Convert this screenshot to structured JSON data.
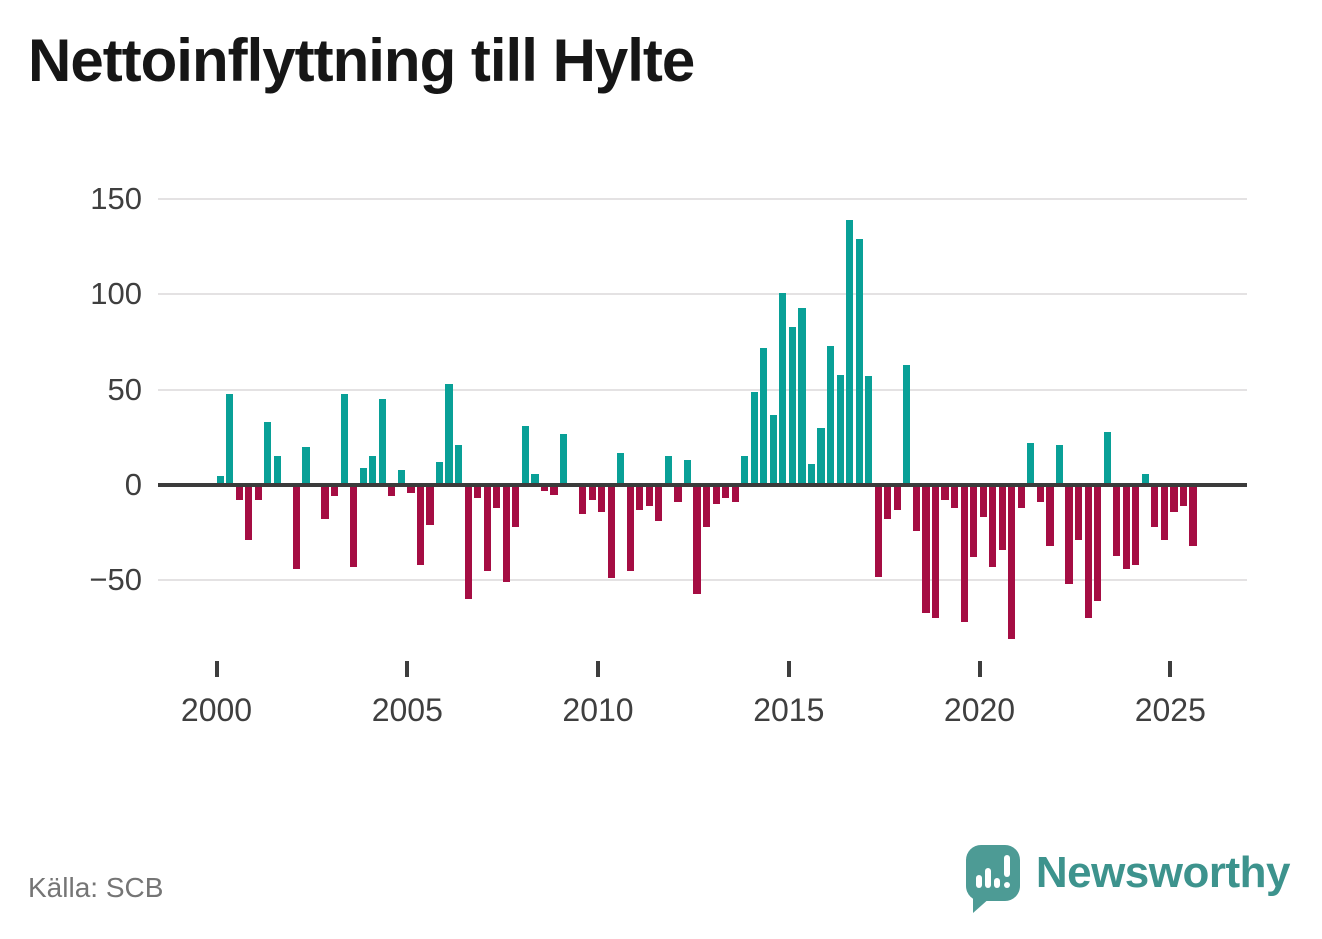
{
  "title": "Nettoinflyttning till Hylte",
  "source": "Källa: SCB",
  "brand": {
    "name": "Newsworthy"
  },
  "colors": {
    "positive_bar": "#09a097",
    "negative_bar": "#a50d43",
    "zero_line": "#3b3b3b",
    "gridline": "#e4e2e3",
    "axis_text": "#3f3f3f",
    "title_text": "#161616",
    "source_text": "#757575",
    "brand_teal": "#3d938d",
    "logo_background": "#4d9b95"
  },
  "chart_data": {
    "type": "bar",
    "title": "Nettoinflyttning till Hylte",
    "xlabel": "",
    "ylabel": "",
    "legend": "none",
    "grid": "horizontal",
    "frequency": "quarterly",
    "period_start": "2000 Q1",
    "period_end": "2025 Q3",
    "start_year": 2000,
    "ylim": [
      -90,
      160
    ],
    "y_ticks": [
      150,
      100,
      50,
      0,
      -50
    ],
    "x_label_ticks": [
      "2000",
      "2005",
      "2010",
      "2015",
      "2020",
      "2025"
    ],
    "values": [
      5,
      48,
      -8,
      -29,
      -8,
      33,
      15,
      0,
      -44,
      20,
      0,
      -18,
      -6,
      48,
      -43,
      9,
      15,
      45,
      -6,
      8,
      -4,
      -42,
      -21,
      12,
      53,
      21,
      -60,
      -7,
      -45,
      -12,
      -51,
      -22,
      31,
      6,
      -3,
      -5,
      27,
      0,
      -15,
      -8,
      -14,
      -49,
      17,
      -45,
      -13,
      -11,
      -19,
      15,
      -9,
      13,
      -57,
      -22,
      -10,
      -7,
      -9,
      15,
      49,
      72,
      37,
      101,
      83,
      93,
      11,
      30,
      73,
      58,
      139,
      129,
      57,
      -48,
      -18,
      -13,
      63,
      -24,
      -67,
      -70,
      -8,
      -12,
      -72,
      -38,
      -17,
      -43,
      -34,
      -81,
      -12,
      22,
      -9,
      -32,
      21,
      -52,
      -29,
      -70,
      -61,
      28,
      -37,
      -44,
      -42,
      6,
      -22,
      -29,
      -14,
      -11,
      -32
    ]
  }
}
